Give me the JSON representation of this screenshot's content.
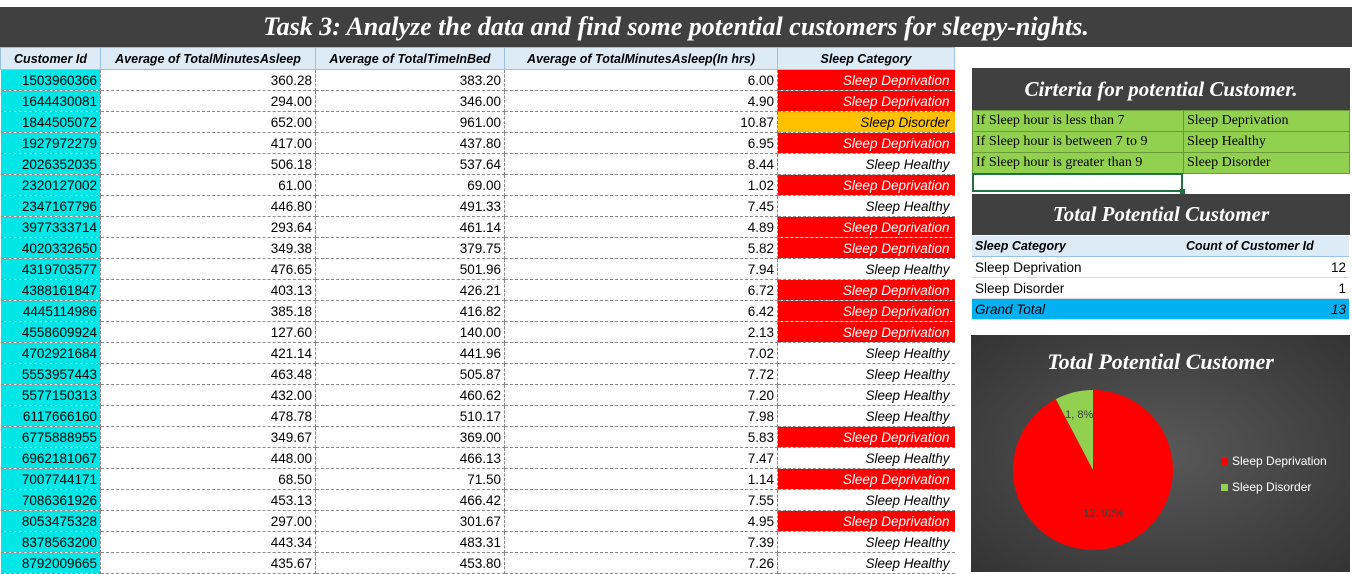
{
  "banner": {
    "title": "Task 3: Analyze the data and find some potential customers for sleepy-nights."
  },
  "main_table": {
    "headers": [
      "Customer Id",
      "Average of TotalMinutesAsleep",
      "Average of TotalTimeInBed",
      "Average of TotalMinutesAsleep(In hrs)",
      "Sleep Category"
    ],
    "rows": [
      [
        "1503960366",
        "360.28",
        "383.20",
        "6.00",
        "Sleep Deprivation"
      ],
      [
        "1644430081",
        "294.00",
        "346.00",
        "4.90",
        "Sleep Deprivation"
      ],
      [
        "1844505072",
        "652.00",
        "961.00",
        "10.87",
        "Sleep Disorder"
      ],
      [
        "1927972279",
        "417.00",
        "437.80",
        "6.95",
        "Sleep Deprivation"
      ],
      [
        "2026352035",
        "506.18",
        "537.64",
        "8.44",
        "Sleep Healthy"
      ],
      [
        "2320127002",
        "61.00",
        "69.00",
        "1.02",
        "Sleep Deprivation"
      ],
      [
        "2347167796",
        "446.80",
        "491.33",
        "7.45",
        "Sleep Healthy"
      ],
      [
        "3977333714",
        "293.64",
        "461.14",
        "4.89",
        "Sleep Deprivation"
      ],
      [
        "4020332650",
        "349.38",
        "379.75",
        "5.82",
        "Sleep Deprivation"
      ],
      [
        "4319703577",
        "476.65",
        "501.96",
        "7.94",
        "Sleep Healthy"
      ],
      [
        "4388161847",
        "403.13",
        "426.21",
        "6.72",
        "Sleep Deprivation"
      ],
      [
        "4445114986",
        "385.18",
        "416.82",
        "6.42",
        "Sleep Deprivation"
      ],
      [
        "4558609924",
        "127.60",
        "140.00",
        "2.13",
        "Sleep Deprivation"
      ],
      [
        "4702921684",
        "421.14",
        "441.96",
        "7.02",
        "Sleep Healthy"
      ],
      [
        "5553957443",
        "463.48",
        "505.87",
        "7.72",
        "Sleep Healthy"
      ],
      [
        "5577150313",
        "432.00",
        "460.62",
        "7.20",
        "Sleep Healthy"
      ],
      [
        "6117666160",
        "478.78",
        "510.17",
        "7.98",
        "Sleep Healthy"
      ],
      [
        "6775888955",
        "349.67",
        "369.00",
        "5.83",
        "Sleep Deprivation"
      ],
      [
        "6962181067",
        "448.00",
        "466.13",
        "7.47",
        "Sleep Healthy"
      ],
      [
        "7007744171",
        "68.50",
        "71.50",
        "1.14",
        "Sleep Deprivation"
      ],
      [
        "7086361926",
        "453.13",
        "466.42",
        "7.55",
        "Sleep Healthy"
      ],
      [
        "8053475328",
        "297.00",
        "301.67",
        "4.95",
        "Sleep Deprivation"
      ],
      [
        "8378563200",
        "443.34",
        "483.31",
        "7.39",
        "Sleep Healthy"
      ],
      [
        "8792009665",
        "435.67",
        "453.80",
        "7.26",
        "Sleep Healthy"
      ]
    ]
  },
  "criteria": {
    "title": "Cirteria for potential Customer.",
    "rows": [
      [
        "If Sleep hour is less than 7",
        "Sleep Deprivation"
      ],
      [
        "If Sleep hour is between 7 to 9",
        "Sleep Healthy"
      ],
      [
        "If Sleep hour is greater than 9",
        "Sleep Disorder"
      ]
    ]
  },
  "pivot": {
    "title": "Total Potential Customer",
    "headers": [
      "Sleep Category",
      "Count of Customer Id"
    ],
    "rows": [
      [
        "Sleep Deprivation",
        "12"
      ],
      [
        "Sleep Disorder",
        "1"
      ]
    ],
    "total": [
      "Grand Total",
      "13"
    ]
  },
  "colors": {
    "deprivation": "#ff0000",
    "disorder": "#ffc000",
    "disorder_pie": "#92d050",
    "id_fill": "#00e5e5",
    "criteria_fill": "#92d050",
    "total_fill": "#00b0f0",
    "header_dark": "#404040"
  },
  "chart_data": {
    "type": "pie",
    "title": "Total Potential Customer",
    "categories": [
      "Sleep Deprivation",
      "Sleep Disorder"
    ],
    "values": [
      12,
      1
    ],
    "data_labels": [
      "12, 92%",
      "1, 8%"
    ],
    "colors": [
      "#ff0000",
      "#92d050"
    ],
    "legend": "right"
  }
}
